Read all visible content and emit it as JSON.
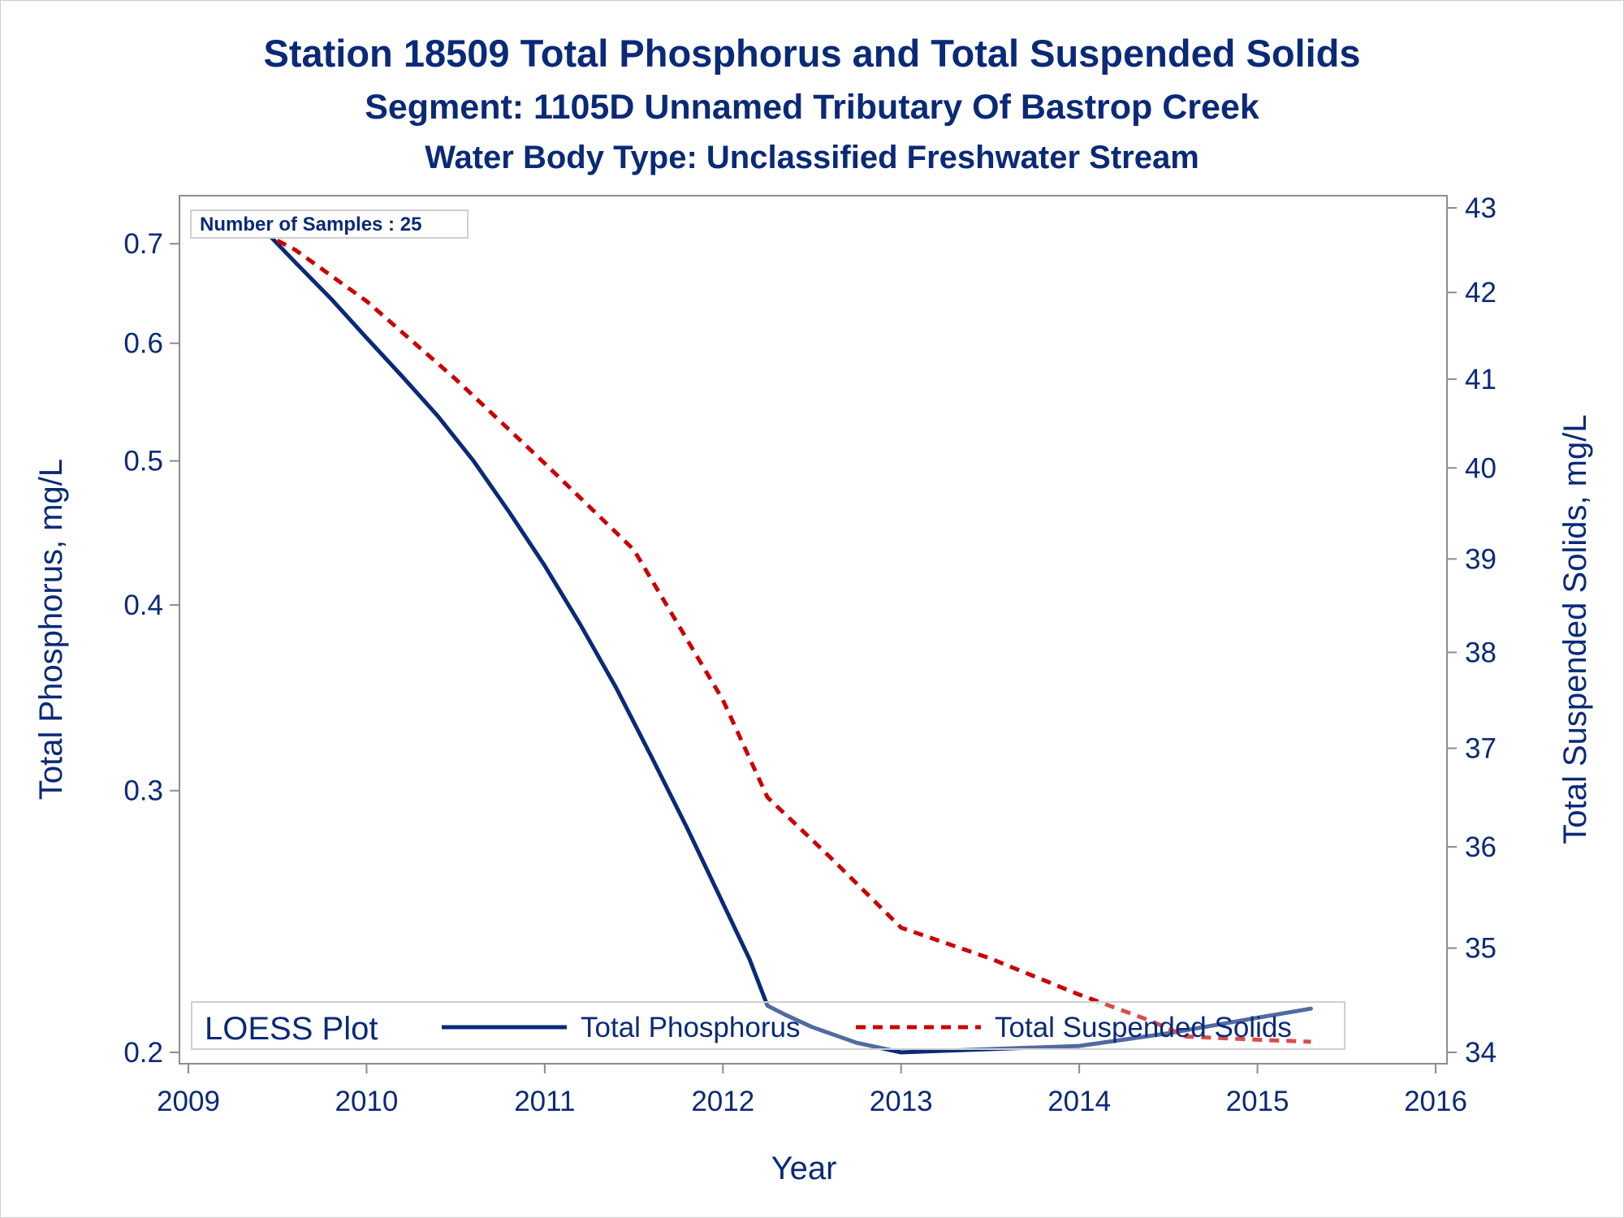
{
  "chart_data": {
    "type": "line",
    "title": "Station 18509  Total Phosphorus and Total Suspended Solids",
    "subtitle": "Segment: 1105D  Unnamed Tributary Of Bastrop Creek",
    "subtitle2": "Water Body Type: Unclassified Freshwater Stream",
    "xlabel": "Year",
    "ylabel_left": "Total Phosphorus, mg/L",
    "ylabel_right": "Total Suspended Solids, mg/L",
    "x_ticks": [
      "2009",
      "2010",
      "2011",
      "2012",
      "2013",
      "2014",
      "2015",
      "2016"
    ],
    "y_left_ticks": [
      "0.2",
      "0.3",
      "0.4",
      "0.5",
      "0.6",
      "0.7"
    ],
    "y_right_ticks": [
      "34",
      "35",
      "36",
      "37",
      "38",
      "39",
      "40",
      "41",
      "42",
      "43"
    ],
    "xlim": [
      2009,
      2016
    ],
    "y_left_lim": [
      0.2,
      0.74
    ],
    "y_left_scale": "log",
    "y_right_lim": [
      34,
      43
    ],
    "y_right_scale": "log",
    "annotation": "Number of Samples : 25",
    "legend": {
      "title": "LOESS Plot",
      "placement": "bottom-inside",
      "items": [
        "Total Phosphorus",
        "Total Suspended Solids"
      ]
    },
    "series": [
      {
        "name": "Total Phosphorus",
        "axis": "left",
        "color": "#0a2a78",
        "style": "solid",
        "x": [
          2009.33,
          2009.6,
          2009.8,
          2010.0,
          2010.2,
          2010.4,
          2010.6,
          2010.8,
          2011.0,
          2011.2,
          2011.4,
          2011.6,
          2011.8,
          2012.0,
          2012.15,
          2012.25,
          2012.35,
          2012.5,
          2012.75,
          2013.0,
          2013.5,
          2014.0,
          2014.5,
          2015.0,
          2015.3
        ],
        "y": [
          0.735,
          0.68,
          0.643,
          0.605,
          0.57,
          0.536,
          0.5,
          0.462,
          0.425,
          0.388,
          0.352,
          0.316,
          0.283,
          0.252,
          0.231,
          0.215,
          0.212,
          0.208,
          0.203,
          0.2,
          0.201,
          0.202,
          0.206,
          0.211,
          0.214
        ]
      },
      {
        "name": "Total Suspended Solids",
        "axis": "right",
        "color": "#cc0000",
        "style": "dashed",
        "x": [
          2009.33,
          2009.6,
          2010.0,
          2010.5,
          2011.0,
          2011.5,
          2012.0,
          2012.25,
          2012.6,
          2013.0,
          2013.5,
          2014.0,
          2014.4,
          2014.6,
          2015.0,
          2015.3
        ],
        "y": [
          42.8,
          42.5,
          41.9,
          41.0,
          40.05,
          39.1,
          37.5,
          36.5,
          35.9,
          35.2,
          34.9,
          34.55,
          34.3,
          34.15,
          34.12,
          34.1
        ]
      }
    ]
  }
}
